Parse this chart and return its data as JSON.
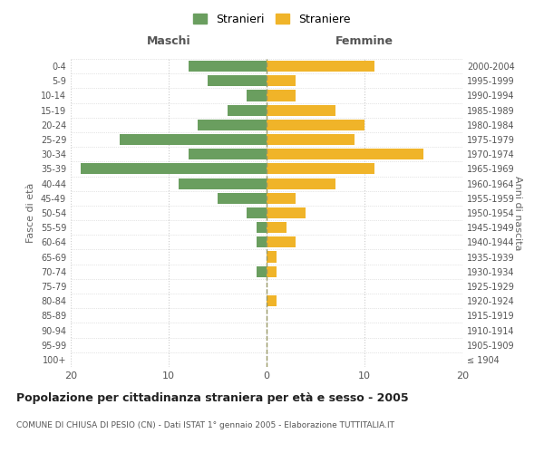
{
  "age_groups": [
    "100+",
    "95-99",
    "90-94",
    "85-89",
    "80-84",
    "75-79",
    "70-74",
    "65-69",
    "60-64",
    "55-59",
    "50-54",
    "45-49",
    "40-44",
    "35-39",
    "30-34",
    "25-29",
    "20-24",
    "15-19",
    "10-14",
    "5-9",
    "0-4"
  ],
  "birth_years": [
    "≤ 1904",
    "1905-1909",
    "1910-1914",
    "1915-1919",
    "1920-1924",
    "1925-1929",
    "1930-1934",
    "1935-1939",
    "1940-1944",
    "1945-1949",
    "1950-1954",
    "1955-1959",
    "1960-1964",
    "1965-1969",
    "1970-1974",
    "1975-1979",
    "1980-1984",
    "1985-1989",
    "1990-1994",
    "1995-1999",
    "2000-2004"
  ],
  "maschi": [
    0,
    0,
    0,
    0,
    0,
    0,
    1,
    0,
    1,
    1,
    2,
    5,
    9,
    19,
    8,
    15,
    7,
    4,
    2,
    6,
    8
  ],
  "femmine": [
    0,
    0,
    0,
    0,
    1,
    0,
    1,
    1,
    3,
    2,
    4,
    3,
    7,
    11,
    16,
    9,
    10,
    7,
    3,
    3,
    11
  ],
  "maschi_color": "#6a9e5f",
  "femmine_color": "#f0b429",
  "xlim": 20,
  "title": "Popolazione per cittadinanza straniera per età e sesso - 2005",
  "subtitle": "COMUNE DI CHIUSA DI PESIO (CN) - Dati ISTAT 1° gennaio 2005 - Elaborazione TUTTITALIA.IT",
  "ylabel_left": "Fasce di età",
  "ylabel_right": "Anni di nascita",
  "label_maschi": "Stranieri",
  "label_femmine": "Straniere",
  "header_maschi": "Maschi",
  "header_femmine": "Femmine",
  "bg_color": "#ffffff",
  "grid_color": "#cccccc",
  "bar_height": 0.75
}
